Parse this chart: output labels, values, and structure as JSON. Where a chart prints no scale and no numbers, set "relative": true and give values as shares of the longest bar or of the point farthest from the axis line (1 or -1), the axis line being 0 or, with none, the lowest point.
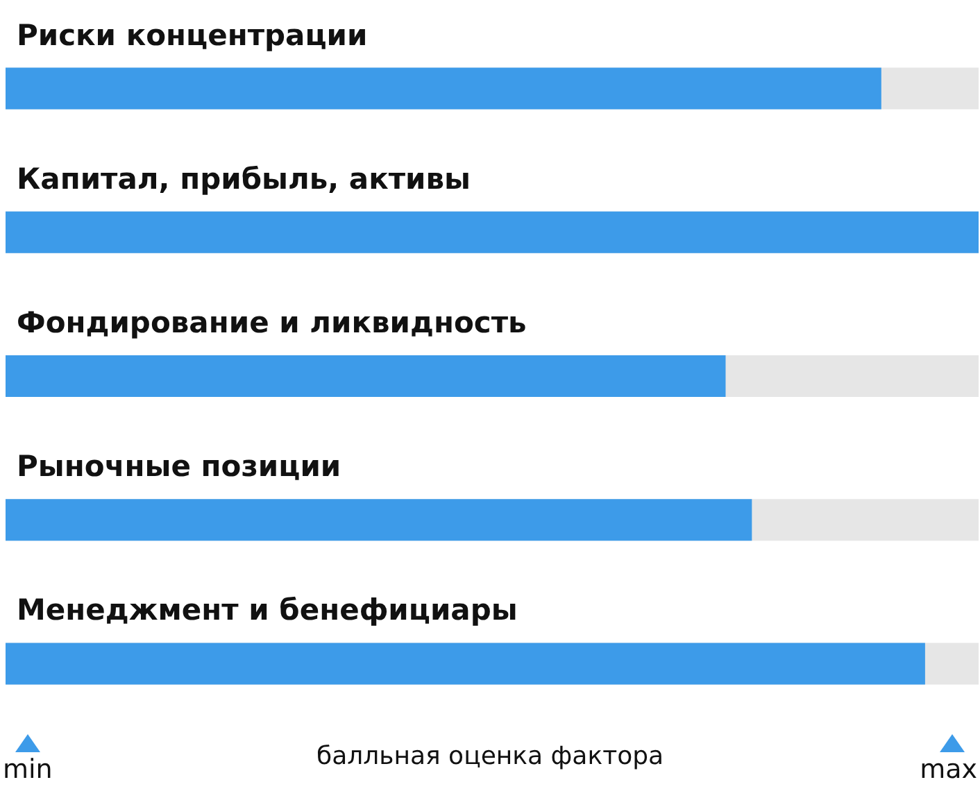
{
  "chart_data": {
    "type": "bar",
    "orientation": "horizontal",
    "relative": true,
    "xlabel": "балльная оценка фактора",
    "annotations": [
      "min",
      "max"
    ],
    "categories": [
      "Риски концентрации",
      "Капитал, прибыль, активы",
      "Фондирование и ликвидность",
      "Рыночные позиции",
      "Менеджмент и бенефициары"
    ],
    "values": [
      0.9,
      1,
      0.74,
      0.767,
      0.945
    ],
    "color": "#3d9be9"
  }
}
